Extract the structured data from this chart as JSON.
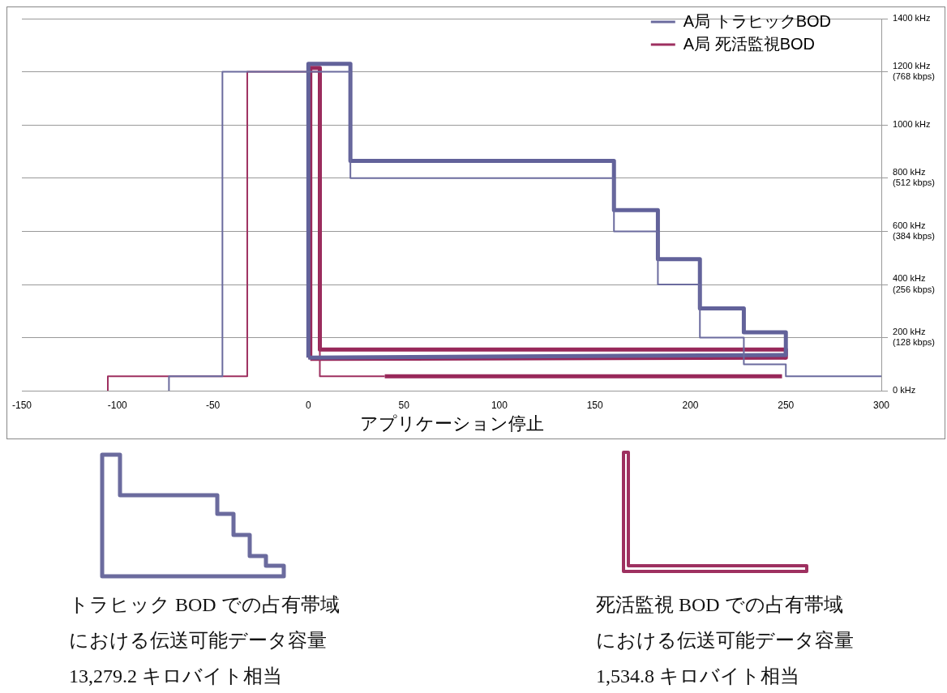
{
  "chart_data": {
    "type": "line",
    "xlabel": "アプリケーション停止",
    "xlim": [
      -150,
      300
    ],
    "xticks": [
      -150,
      -100,
      -50,
      0,
      50,
      100,
      150,
      200,
      250,
      300
    ],
    "ylim": [
      0,
      1400
    ],
    "yticks": [
      {
        "value": 0,
        "label": "0 kHz"
      },
      {
        "value": 200,
        "label": "200 kHz\n(128 kbps)"
      },
      {
        "value": 400,
        "label": "400 kHz\n(256 kbps)"
      },
      {
        "value": 600,
        "label": "600 kHz\n(384 kbps)"
      },
      {
        "value": 800,
        "label": "800 kHz\n(512 kbps)"
      },
      {
        "value": 1000,
        "label": "1000 kHz"
      },
      {
        "value": 1200,
        "label": "1200 kHz\n(768 kbps)"
      },
      {
        "value": 1400,
        "label": "1400 kHz"
      }
    ],
    "grid": "y",
    "legend": "top right",
    "marker": "none",
    "series": [
      {
        "name": "A局 トラヒックBOD",
        "color": "#6b6b9e",
        "x": [
          -73,
          -73,
          -45,
          -45,
          22,
          22,
          160,
          160,
          183,
          183,
          205,
          205,
          228,
          228,
          250,
          250,
          300
        ],
        "values": [
          0,
          55,
          55,
          1200,
          1200,
          800,
          800,
          600,
          600,
          400,
          400,
          200,
          200,
          100,
          100,
          55,
          55
        ]
      },
      {
        "color": "#62629a",
        "x": [
          0,
          0,
          22,
          22,
          160,
          160,
          183,
          183,
          205,
          205,
          228,
          228,
          250,
          250
        ],
        "values": [
          125,
          1230,
          1230,
          865,
          865,
          680,
          680,
          495,
          495,
          310,
          310,
          220,
          220,
          135
        ]
      },
      {
        "color": "#62629a",
        "x": [
          0,
          250
        ],
        "values": [
          125,
          135
        ]
      },
      {
        "name": "A局 死活監視BOD",
        "color": "#9e3060",
        "x": [
          -105,
          -105,
          -32,
          -32,
          6,
          6,
          40
        ],
        "values": [
          0,
          55,
          55,
          1200,
          1200,
          55,
          55
        ]
      },
      {
        "color": "#98285a",
        "x": [
          1,
          1,
          6,
          6,
          250,
          250
        ],
        "values": [
          120,
          1215,
          1215,
          155,
          155,
          125
        ]
      },
      {
        "color": "#98285a",
        "x": [
          1,
          250
        ],
        "values": [
          120,
          125
        ]
      },
      {
        "color": "#98285a",
        "x": [
          40,
          248
        ],
        "values": [
          55,
          55
        ]
      }
    ],
    "annotations": [
      "トラヒック BOD での占有帯域における伝送可能データ容量",
      "13,279.2 キロバイト相当",
      "死活監視 BOD での占有帯域における伝送可能データ容量",
      "1,534.8 キロバイト相当"
    ]
  }
}
